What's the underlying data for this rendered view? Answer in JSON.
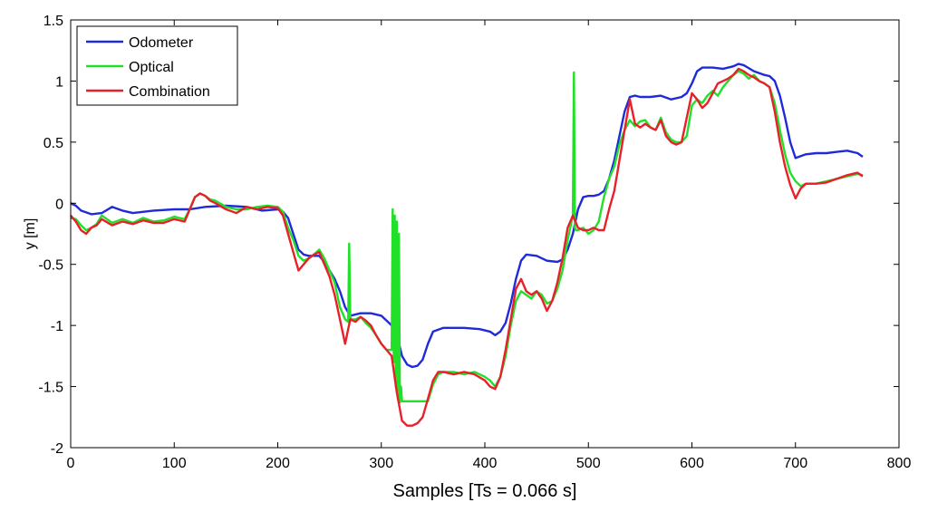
{
  "chart_data": {
    "type": "line",
    "title": "",
    "xlabel": "Samples [Ts = 0.066 s]",
    "ylabel": "y [m]",
    "xlim": [
      0,
      800
    ],
    "ylim": [
      -2,
      1.5
    ],
    "xticks": [
      0,
      100,
      200,
      300,
      400,
      500,
      600,
      700,
      800
    ],
    "yticks": [
      -2,
      -1.5,
      -1,
      -0.5,
      0,
      0.5,
      1,
      1.5
    ],
    "xtick_labels": [
      "0",
      "100",
      "200",
      "300",
      "400",
      "500",
      "600",
      "700",
      "800"
    ],
    "ytick_labels": [
      "-2",
      "-1.5",
      "-1",
      "-0.5",
      "0",
      "0.5",
      "1",
      "1.5"
    ],
    "grid": false,
    "legend_position": "top-left",
    "series": [
      {
        "name": "Odometer",
        "color": "#1f2bd8",
        "x": [
          0,
          5,
          10,
          20,
          30,
          40,
          50,
          60,
          80,
          100,
          115,
          130,
          150,
          170,
          185,
          200,
          205,
          210,
          215,
          220,
          225,
          230,
          240,
          245,
          250,
          255,
          260,
          265,
          270,
          280,
          290,
          300,
          305,
          310,
          315,
          320,
          325,
          330,
          335,
          340,
          345,
          350,
          360,
          380,
          395,
          405,
          410,
          415,
          420,
          425,
          430,
          435,
          440,
          450,
          460,
          470,
          475,
          480,
          485,
          490,
          495,
          500,
          505,
          510,
          515,
          520,
          525,
          530,
          535,
          540,
          545,
          550,
          560,
          570,
          580,
          590,
          595,
          600,
          605,
          610,
          620,
          630,
          640,
          645,
          650,
          660,
          670,
          675,
          680,
          685,
          690,
          695,
          700,
          710,
          720,
          730,
          740,
          750,
          760,
          765
        ],
        "y": [
          0.0,
          -0.02,
          -0.06,
          -0.09,
          -0.08,
          -0.03,
          -0.06,
          -0.08,
          -0.06,
          -0.05,
          -0.05,
          -0.03,
          -0.02,
          -0.03,
          -0.06,
          -0.05,
          -0.07,
          -0.12,
          -0.25,
          -0.38,
          -0.42,
          -0.43,
          -0.43,
          -0.48,
          -0.55,
          -0.62,
          -0.72,
          -0.85,
          -0.92,
          -0.9,
          -0.9,
          -0.92,
          -0.96,
          -1.0,
          -1.07,
          -1.25,
          -1.32,
          -1.34,
          -1.33,
          -1.28,
          -1.15,
          -1.05,
          -1.02,
          -1.02,
          -1.03,
          -1.05,
          -1.08,
          -1.05,
          -0.98,
          -0.82,
          -0.62,
          -0.47,
          -0.42,
          -0.43,
          -0.47,
          -0.48,
          -0.46,
          -0.38,
          -0.25,
          -0.05,
          0.05,
          0.06,
          0.06,
          0.07,
          0.1,
          0.2,
          0.35,
          0.55,
          0.75,
          0.87,
          0.88,
          0.87,
          0.87,
          0.88,
          0.85,
          0.87,
          0.9,
          0.98,
          1.08,
          1.11,
          1.11,
          1.1,
          1.12,
          1.14,
          1.13,
          1.08,
          1.05,
          1.04,
          1.0,
          0.88,
          0.7,
          0.5,
          0.37,
          0.4,
          0.41,
          0.41,
          0.42,
          0.43,
          0.41,
          0.38
        ]
      },
      {
        "name": "Optical",
        "color": "#22e02a",
        "x": [
          0,
          5,
          10,
          15,
          20,
          25,
          30,
          40,
          50,
          60,
          70,
          80,
          90,
          100,
          105,
          110,
          115,
          120,
          125,
          130,
          135,
          140,
          150,
          160,
          170,
          180,
          190,
          200,
          205,
          210,
          215,
          220,
          225,
          230,
          235,
          240,
          245,
          250,
          255,
          260,
          265,
          268,
          269,
          270,
          271,
          275,
          280,
          285,
          290,
          295,
          300,
          305,
          310,
          311,
          312,
          313,
          314,
          315,
          316,
          317,
          318,
          319,
          320,
          330,
          345,
          350,
          355,
          360,
          370,
          380,
          390,
          400,
          405,
          410,
          415,
          420,
          425,
          430,
          435,
          440,
          445,
          450,
          455,
          460,
          465,
          470,
          475,
          480,
          485,
          486,
          487,
          488,
          489,
          490,
          495,
          500,
          505,
          510,
          515,
          520,
          525,
          530,
          535,
          540,
          545,
          550,
          555,
          560,
          565,
          570,
          575,
          580,
          585,
          590,
          595,
          600,
          605,
          610,
          615,
          620,
          625,
          630,
          635,
          640,
          645,
          650,
          655,
          660,
          665,
          670,
          675,
          680,
          685,
          690,
          695,
          700,
          705,
          710,
          720,
          730,
          740,
          750,
          760,
          765
        ],
        "y": [
          -0.12,
          -0.13,
          -0.18,
          -0.22,
          -0.2,
          -0.17,
          -0.1,
          -0.16,
          -0.13,
          -0.16,
          -0.12,
          -0.15,
          -0.14,
          -0.11,
          -0.12,
          -0.13,
          -0.05,
          0.05,
          0.08,
          0.06,
          0.03,
          0.02,
          -0.03,
          -0.05,
          -0.05,
          -0.03,
          -0.02,
          -0.03,
          -0.07,
          -0.2,
          -0.3,
          -0.43,
          -0.47,
          -0.45,
          -0.42,
          -0.38,
          -0.45,
          -0.55,
          -0.65,
          -0.85,
          -0.95,
          -0.97,
          -0.33,
          -0.93,
          -0.95,
          -0.95,
          -0.93,
          -0.98,
          -1.02,
          -1.08,
          -1.15,
          -1.2,
          -1.2,
          -0.05,
          -1.3,
          -0.1,
          -1.5,
          -0.15,
          -1.6,
          -0.25,
          -1.63,
          -1.5,
          -1.62,
          -1.62,
          -1.62,
          -1.48,
          -1.4,
          -1.38,
          -1.38,
          -1.4,
          -1.38,
          -1.42,
          -1.45,
          -1.5,
          -1.42,
          -1.25,
          -1.0,
          -0.8,
          -0.72,
          -0.75,
          -0.78,
          -0.72,
          -0.75,
          -0.82,
          -0.8,
          -0.7,
          -0.55,
          -0.3,
          -0.1,
          1.07,
          -0.2,
          -0.22,
          -0.22,
          -0.22,
          -0.2,
          -0.25,
          -0.22,
          -0.15,
          0.05,
          0.2,
          0.3,
          0.48,
          0.6,
          0.68,
          0.63,
          0.67,
          0.68,
          0.62,
          0.6,
          0.7,
          0.58,
          0.52,
          0.5,
          0.5,
          0.55,
          0.8,
          0.85,
          0.82,
          0.88,
          0.92,
          0.88,
          0.95,
          1.0,
          1.05,
          1.08,
          1.06,
          1.02,
          1.05,
          1.0,
          0.98,
          0.95,
          0.82,
          0.6,
          0.4,
          0.25,
          0.18,
          0.14,
          0.16,
          0.16,
          0.18,
          0.2,
          0.22,
          0.24,
          0.23
        ]
      },
      {
        "name": "Combination",
        "color": "#e8202a",
        "x": [
          0,
          5,
          10,
          15,
          20,
          25,
          30,
          40,
          50,
          60,
          70,
          80,
          90,
          100,
          105,
          110,
          115,
          120,
          125,
          130,
          135,
          140,
          150,
          160,
          170,
          180,
          190,
          200,
          205,
          210,
          215,
          220,
          225,
          230,
          235,
          240,
          245,
          250,
          255,
          260,
          265,
          270,
          275,
          280,
          285,
          290,
          295,
          300,
          305,
          310,
          315,
          320,
          325,
          330,
          335,
          340,
          345,
          350,
          355,
          360,
          370,
          380,
          390,
          400,
          405,
          410,
          415,
          420,
          425,
          430,
          435,
          440,
          445,
          450,
          455,
          460,
          465,
          470,
          475,
          480,
          485,
          490,
          495,
          500,
          505,
          510,
          515,
          520,
          525,
          530,
          535,
          540,
          545,
          550,
          555,
          560,
          565,
          570,
          575,
          580,
          585,
          590,
          595,
          600,
          605,
          610,
          615,
          620,
          625,
          630,
          635,
          640,
          645,
          650,
          655,
          660,
          665,
          670,
          675,
          680,
          685,
          690,
          695,
          700,
          705,
          710,
          720,
          730,
          740,
          750,
          760,
          765
        ],
        "y": [
          -0.1,
          -0.15,
          -0.22,
          -0.25,
          -0.2,
          -0.18,
          -0.13,
          -0.18,
          -0.15,
          -0.17,
          -0.14,
          -0.16,
          -0.16,
          -0.13,
          -0.14,
          -0.15,
          -0.05,
          0.05,
          0.08,
          0.06,
          0.02,
          0.0,
          -0.05,
          -0.08,
          -0.03,
          -0.05,
          -0.03,
          -0.04,
          -0.1,
          -0.25,
          -0.4,
          -0.55,
          -0.5,
          -0.45,
          -0.42,
          -0.4,
          -0.5,
          -0.6,
          -0.75,
          -0.95,
          -1.15,
          -0.95,
          -0.97,
          -0.93,
          -0.96,
          -1.0,
          -1.08,
          -1.15,
          -1.2,
          -1.25,
          -1.55,
          -1.78,
          -1.82,
          -1.82,
          -1.8,
          -1.75,
          -1.6,
          -1.45,
          -1.38,
          -1.38,
          -1.4,
          -1.38,
          -1.4,
          -1.45,
          -1.5,
          -1.52,
          -1.42,
          -1.2,
          -0.95,
          -0.7,
          -0.62,
          -0.72,
          -0.75,
          -0.72,
          -0.78,
          -0.88,
          -0.8,
          -0.65,
          -0.45,
          -0.2,
          -0.1,
          -0.2,
          -0.22,
          -0.22,
          -0.2,
          -0.22,
          -0.22,
          -0.05,
          0.1,
          0.35,
          0.6,
          0.85,
          0.65,
          0.62,
          0.65,
          0.62,
          0.6,
          0.68,
          0.55,
          0.5,
          0.48,
          0.5,
          0.7,
          0.9,
          0.85,
          0.78,
          0.82,
          0.9,
          0.98,
          1.0,
          1.02,
          1.05,
          1.1,
          1.08,
          1.05,
          1.03,
          1.0,
          0.98,
          0.95,
          0.75,
          0.5,
          0.3,
          0.15,
          0.04,
          0.12,
          0.16,
          0.16,
          0.17,
          0.2,
          0.23,
          0.25,
          0.22
        ]
      }
    ]
  }
}
